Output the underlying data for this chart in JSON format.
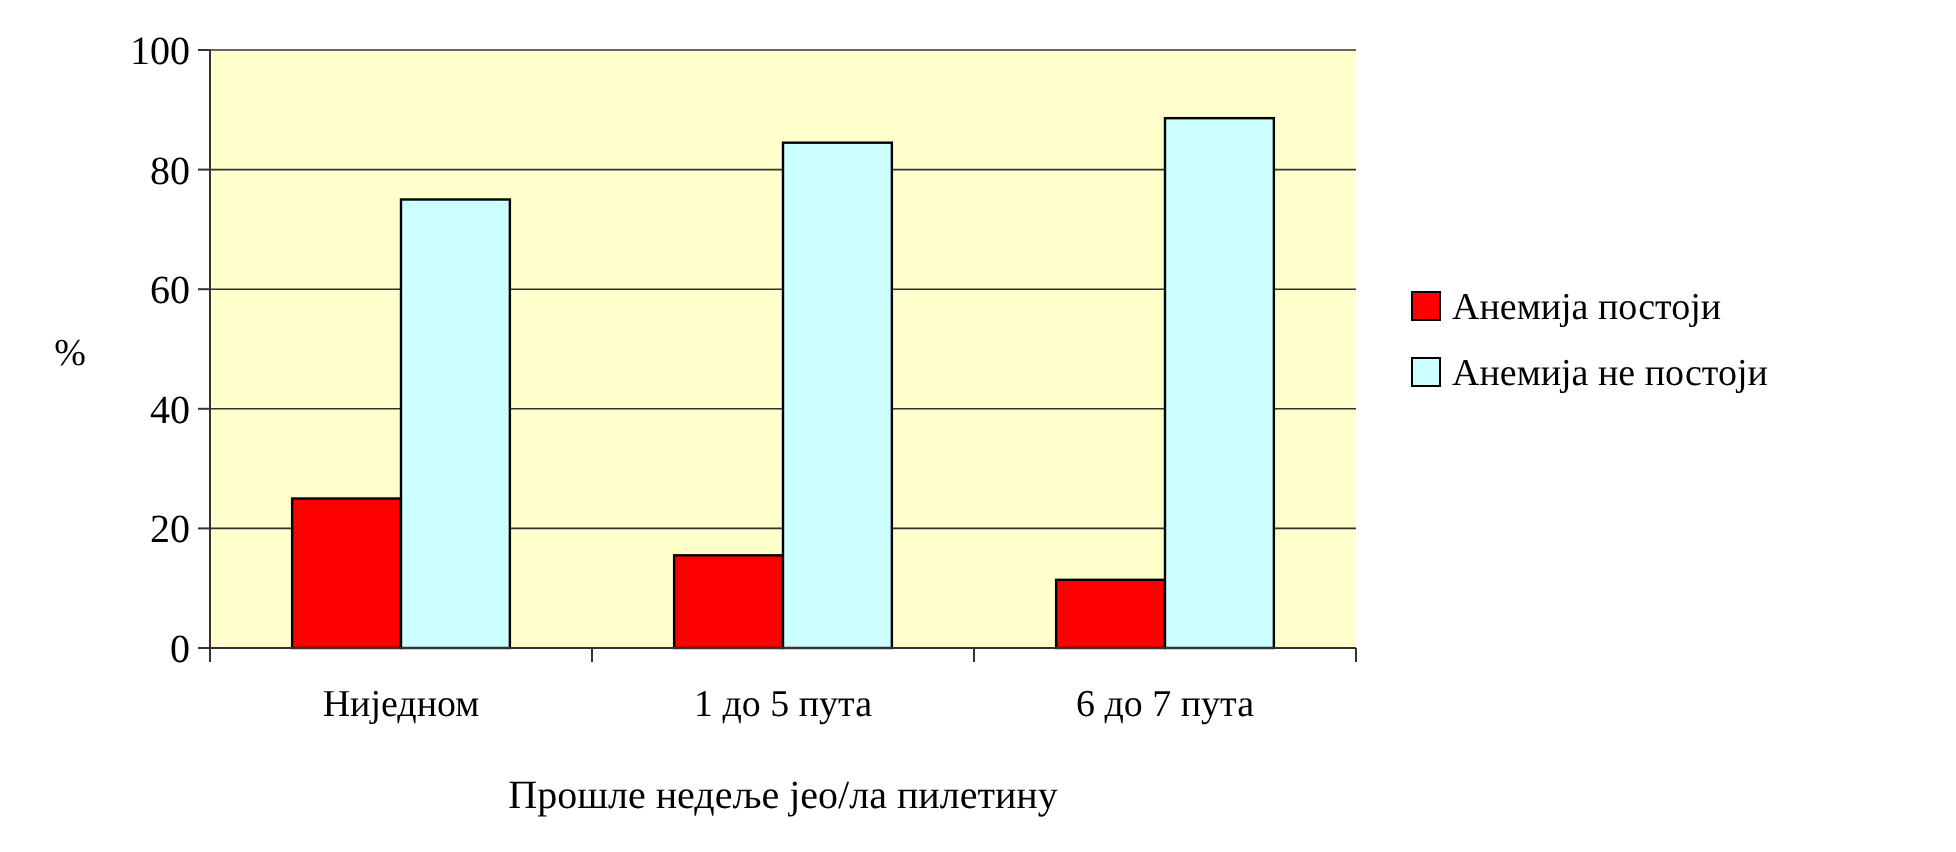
{
  "chart_data": {
    "type": "bar",
    "xlabel": "Прошле недеље јео/ла пилетину",
    "ylabel": "%",
    "categories": [
      "Ниједном",
      "1 до 5 пута",
      "6 до 7 пута"
    ],
    "series": [
      {
        "name": "Анемија постоји",
        "color": "#ff0000",
        "values": [
          25,
          15.5,
          11.4
        ]
      },
      {
        "name": "Анемија не постоји",
        "color": "#ccffff",
        "values": [
          75,
          84.5,
          88.6
        ]
      }
    ],
    "ylim": [
      0,
      100
    ],
    "yticks": [
      0,
      20,
      40,
      60,
      80,
      100
    ],
    "grid": "y",
    "legend": "right"
  }
}
